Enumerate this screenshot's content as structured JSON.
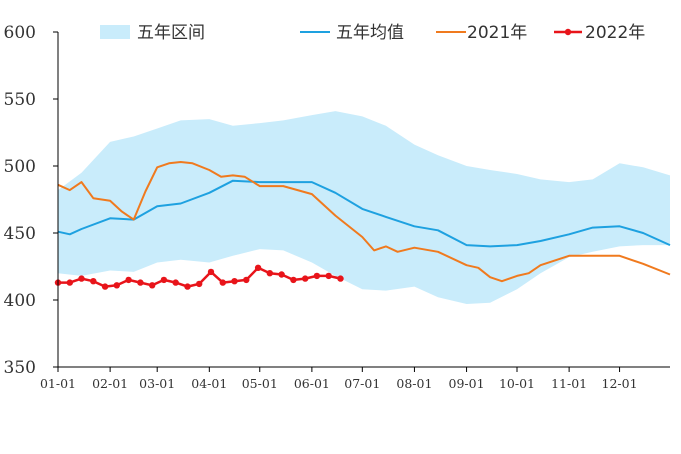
{
  "chart_data": {
    "type": "line",
    "title": "",
    "xlabel": "",
    "ylabel": "",
    "ylim": [
      350,
      600
    ],
    "yticks": [
      350,
      400,
      450,
      500,
      550,
      600
    ],
    "xlim": [
      "01-01",
      "12-31"
    ],
    "xticks": [
      "01-01",
      "02-01",
      "03-01",
      "04-01",
      "05-01",
      "06-01",
      "07-01",
      "08-01",
      "09-01",
      "10-01",
      "11-01",
      "12-01"
    ],
    "grid": false,
    "legend_placement": "top",
    "colors": {
      "band": "#c9ecfb",
      "avg": "#1ea1e0",
      "y2021": "#f07a1e",
      "y2022": "#e8141a",
      "axis": "#000000",
      "text": "#333333"
    },
    "series": [
      {
        "name": "五年区间",
        "kind": "band",
        "x": [
          "01-01",
          "01-15",
          "02-01",
          "02-15",
          "03-01",
          "03-15",
          "04-01",
          "04-15",
          "05-01",
          "05-15",
          "06-01",
          "06-15",
          "07-01",
          "07-15",
          "08-01",
          "08-15",
          "09-01",
          "09-15",
          "10-01",
          "10-15",
          "11-01",
          "11-15",
          "12-01",
          "12-15",
          "12-31"
        ],
        "upper": [
          482,
          495,
          518,
          522,
          528,
          534,
          535,
          530,
          532,
          534,
          538,
          541,
          537,
          530,
          516,
          508,
          500,
          497,
          494,
          490,
          488,
          490,
          502,
          499,
          493
        ],
        "lower": [
          420,
          418,
          422,
          421,
          428,
          430,
          428,
          433,
          438,
          437,
          428,
          418,
          408,
          407,
          410,
          402,
          397,
          398,
          408,
          420,
          432,
          436,
          440,
          441,
          441
        ]
      },
      {
        "name": "五年均值",
        "kind": "line",
        "x": [
          "01-01",
          "01-08",
          "01-15",
          "02-01",
          "02-15",
          "03-01",
          "03-15",
          "04-01",
          "04-15",
          "05-01",
          "05-15",
          "06-01",
          "06-15",
          "07-01",
          "07-15",
          "08-01",
          "08-15",
          "09-01",
          "09-15",
          "10-01",
          "10-15",
          "11-01",
          "11-15",
          "12-01",
          "12-15",
          "12-31"
        ],
        "values": [
          451,
          449,
          453,
          461,
          460,
          470,
          472,
          480,
          489,
          488,
          488,
          488,
          480,
          468,
          462,
          455,
          452,
          441,
          440,
          441,
          444,
          449,
          454,
          455,
          450,
          441
        ]
      },
      {
        "name": "2021年",
        "kind": "line",
        "x": [
          "01-01",
          "01-08",
          "01-15",
          "01-22",
          "02-01",
          "02-08",
          "02-15",
          "02-22",
          "03-01",
          "03-08",
          "03-15",
          "03-22",
          "04-01",
          "04-08",
          "04-15",
          "04-22",
          "05-01",
          "05-15",
          "06-01",
          "06-15",
          "07-01",
          "07-08",
          "07-15",
          "07-22",
          "08-01",
          "08-15",
          "09-01",
          "09-08",
          "09-15",
          "09-22",
          "10-01",
          "10-08",
          "10-15",
          "11-01",
          "11-15",
          "12-01",
          "12-15",
          "12-31"
        ],
        "values": [
          486,
          482,
          488,
          476,
          474,
          466,
          460,
          481,
          499,
          502,
          503,
          502,
          497,
          492,
          493,
          492,
          485,
          485,
          479,
          463,
          447,
          437,
          440,
          436,
          439,
          436,
          426,
          424,
          417,
          414,
          418,
          420,
          426,
          433,
          433,
          433,
          427,
          419
        ]
      },
      {
        "name": "2022年",
        "kind": "line-markers",
        "x": [
          "01-01",
          "01-08",
          "01-15",
          "01-22",
          "01-29",
          "02-05",
          "02-12",
          "02-19",
          "02-26",
          "03-05",
          "03-12",
          "03-19",
          "03-26",
          "04-02",
          "04-09",
          "04-16",
          "04-23",
          "04-30",
          "05-07",
          "05-14",
          "05-21",
          "05-28",
          "06-04",
          "06-11",
          "06-18"
        ],
        "values": [
          413,
          413,
          416,
          414,
          410,
          411,
          415,
          413,
          411,
          415,
          413,
          410,
          412,
          421,
          413,
          414,
          415,
          424,
          420,
          419,
          415,
          416,
          418,
          418,
          416
        ]
      }
    ]
  }
}
